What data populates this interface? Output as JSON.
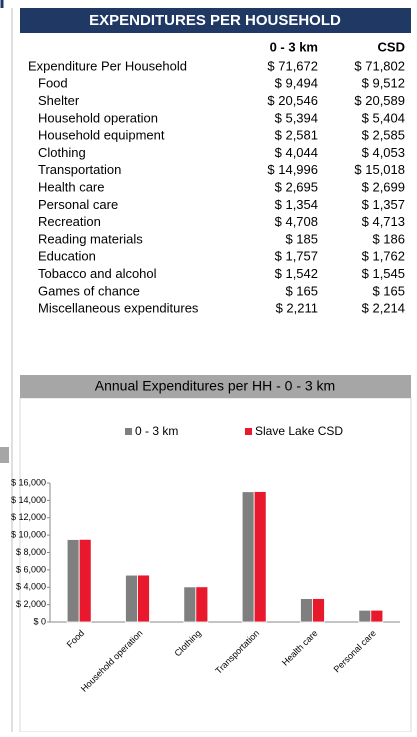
{
  "header": {
    "title": "EXPENDITURES PER HOUSEHOLD"
  },
  "table": {
    "columns": [
      "0 - 3 km",
      "CSD"
    ],
    "rows": [
      [
        "Expenditure Per Household",
        "$ 71,672",
        "$ 71,802"
      ],
      [
        "Food",
        "$ 9,494",
        "$ 9,512"
      ],
      [
        "Shelter",
        "$ 20,546",
        "$ 20,589"
      ],
      [
        "Household operation",
        "$ 5,394",
        "$ 5,404"
      ],
      [
        "Household  equipment",
        "$ 2,581",
        "$ 2,585"
      ],
      [
        "Clothing",
        "$ 4,044",
        "$ 4,053"
      ],
      [
        "Transportation",
        "$ 14,996",
        "$ 15,018"
      ],
      [
        "Health care",
        "$ 2,695",
        "$ 2,699"
      ],
      [
        "Personal care",
        "$ 1,354",
        "$ 1,357"
      ],
      [
        "Recreation",
        "$ 4,708",
        "$ 4,713"
      ],
      [
        "Reading materials",
        "$ 185",
        "$ 186"
      ],
      [
        "Education",
        "$ 1,757",
        "$ 1,762"
      ],
      [
        "Tobacco and alcohol",
        "$ 1,542",
        "$ 1,545"
      ],
      [
        "Games of chance",
        "$ 165",
        "$ 165"
      ],
      [
        "Miscellaneous expenditures",
        "$ 2,211",
        "$ 2,214"
      ]
    ]
  },
  "chart_data": {
    "type": "bar",
    "title": "Annual Expenditures per HH - 0 - 3 km",
    "categories": [
      "Food",
      "Household operation",
      "Clothing",
      "Transportation",
      "Health care",
      "Personal care"
    ],
    "series": [
      {
        "name": "0 - 3 km",
        "color": "#7f7f7f",
        "values": [
          9494,
          5394,
          4044,
          14996,
          2695,
          1354
        ]
      },
      {
        "name": "Slave Lake CSD",
        "color": "#e8192c",
        "values": [
          9512,
          5404,
          4053,
          15018,
          2699,
          1357
        ]
      }
    ],
    "ylim": [
      0,
      16000
    ],
    "yticks": [
      {
        "value": 0,
        "label": "$ 0"
      },
      {
        "value": 2000,
        "label": "$ 2,000"
      },
      {
        "value": 4000,
        "label": "$ 4,000"
      },
      {
        "value": 6000,
        "label": "$ 6,000"
      },
      {
        "value": 8000,
        "label": "$ 8,000"
      },
      {
        "value": 10000,
        "label": "$ 10,000"
      },
      {
        "value": 12000,
        "label": "$ 12,000"
      },
      {
        "value": 14000,
        "label": "$ 14,000"
      },
      {
        "value": 16000,
        "label": "$ 16,000"
      }
    ],
    "grid": false,
    "legend": "top"
  }
}
